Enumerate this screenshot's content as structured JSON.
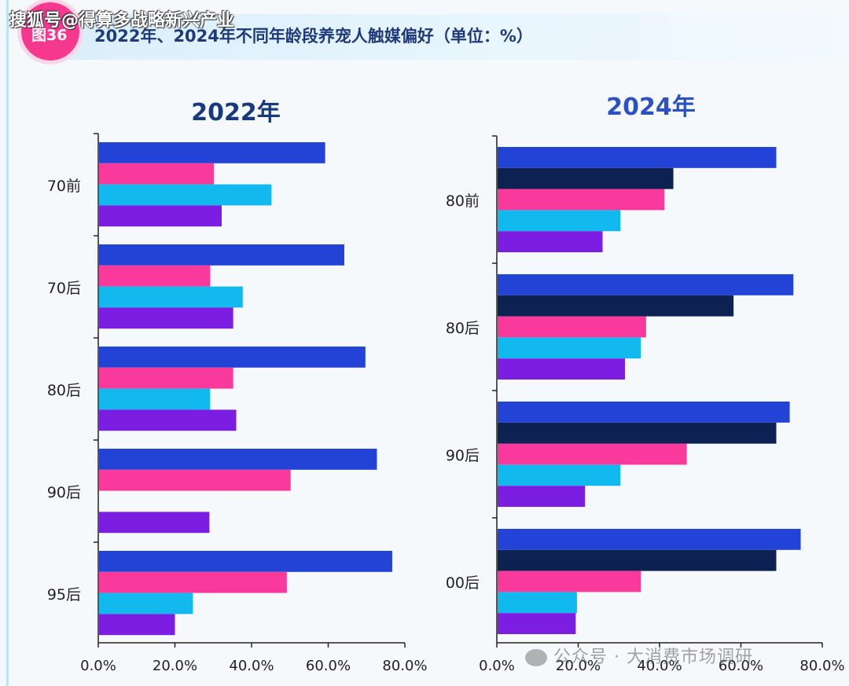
{
  "header": {
    "badge": "图36",
    "title": "2022年、2024年不同年龄段养宠人触媒偏好（单位：%）"
  },
  "watermark_top": "搜狐号@得算多战略新兴产业",
  "watermark_bottom": "公众号 · 大消费市场调研",
  "watermark_icon": "wechat-icon",
  "colors": {
    "royal_blue": "#2243d6",
    "navy": "#0d2252",
    "pink": "#f93a9c",
    "cyan": "#11b9ef",
    "purple": "#7b1ee2"
  },
  "chart_data": [
    {
      "type": "bar",
      "orientation": "horizontal",
      "title": "2022年",
      "categories": [
        "70前",
        "70后",
        "80后",
        "90后",
        "95后"
      ],
      "series": [
        {
          "name": "series-1",
          "color": "#2243d6",
          "values": [
            59,
            64,
            69.5,
            72.5,
            76.5
          ]
        },
        {
          "name": "series-2",
          "color": "#f93a9c",
          "values": [
            30,
            29,
            35,
            50,
            49
          ]
        },
        {
          "name": "series-3",
          "color": "#11b9ef",
          "values": [
            45,
            37.5,
            29,
            null,
            24.5
          ]
        },
        {
          "name": "series-4",
          "color": "#7b1ee2",
          "values": [
            32,
            35,
            35.8,
            28.8,
            19.8
          ]
        }
      ],
      "xlim": [
        0,
        80
      ],
      "xticks": [
        "0.0%",
        "20.0%",
        "40.0%",
        "60.0%",
        "80.0%"
      ],
      "legend": "none"
    },
    {
      "type": "bar",
      "orientation": "horizontal",
      "title": "2024年",
      "categories": [
        "80前",
        "80后",
        "90后",
        "00后"
      ],
      "series": [
        {
          "name": "series-1",
          "color": "#2243d6",
          "values": [
            68.5,
            72.7,
            71.8,
            74.5
          ]
        },
        {
          "name": "series-2",
          "color": "#0d2252",
          "values": [
            43.2,
            58,
            68.5,
            68.5
          ]
        },
        {
          "name": "series-3",
          "color": "#f93a9c",
          "values": [
            41,
            36.5,
            46.5,
            35.2
          ]
        },
        {
          "name": "series-4",
          "color": "#11b9ef",
          "values": [
            30.2,
            35.2,
            30.2,
            19.5
          ]
        },
        {
          "name": "series-5",
          "color": "#7b1ee2",
          "values": [
            25.8,
            31.3,
            21.5,
            19.2
          ]
        }
      ],
      "xlim": [
        0,
        80
      ],
      "xticks": [
        "0.0%",
        "20.0%",
        "40.0%",
        "60.0%",
        "80.0%"
      ],
      "legend": "none"
    }
  ]
}
